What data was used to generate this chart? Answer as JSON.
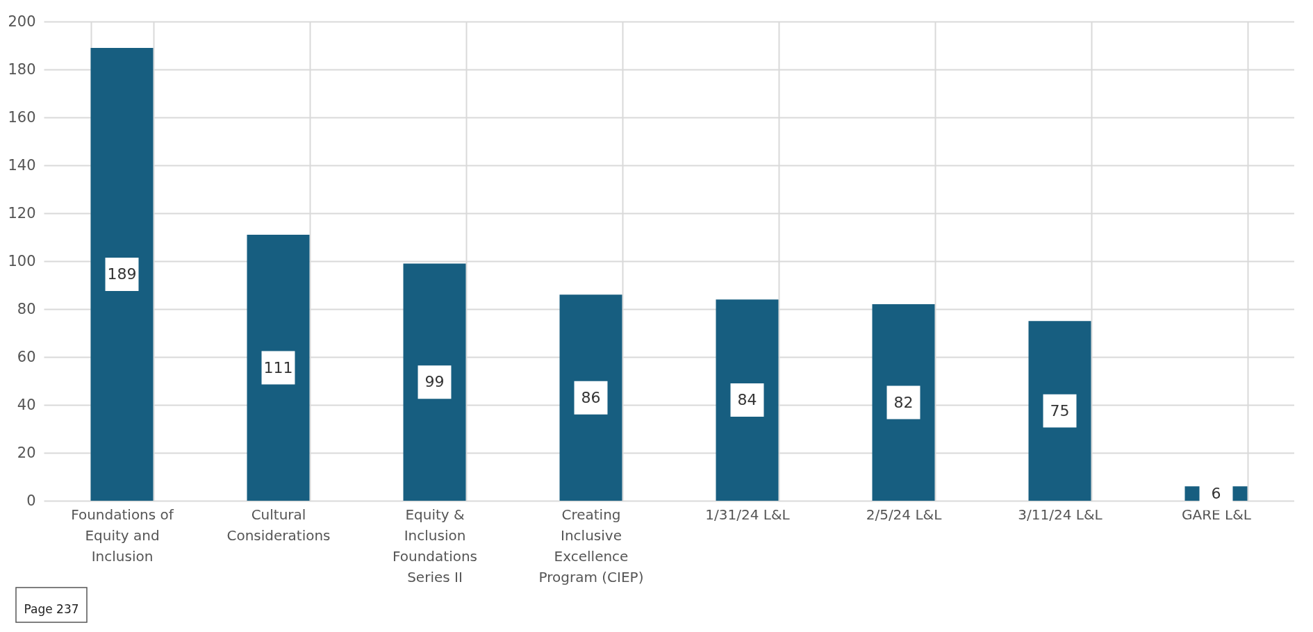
{
  "chart_data": {
    "type": "bar",
    "categories": [
      "Foundations of Equity and Inclusion",
      "Cultural Considerations",
      "Equity & Inclusion Foundations Series II",
      "Creating Inclusive Excellence Program (CIEP)",
      "1/31/24 L&L",
      "2/5/24 L&L",
      "3/11/24 L&L",
      "GARE L&L"
    ],
    "values": [
      189,
      111,
      99,
      86,
      84,
      82,
      75,
      6
    ],
    "color": "#175e80",
    "ylim": [
      0,
      200
    ],
    "yticks": [
      0,
      20,
      40,
      60,
      80,
      100,
      120,
      140,
      160,
      180,
      200
    ],
    "grid": true,
    "data_labels": true,
    "annotations": [
      "Page 237"
    ]
  }
}
